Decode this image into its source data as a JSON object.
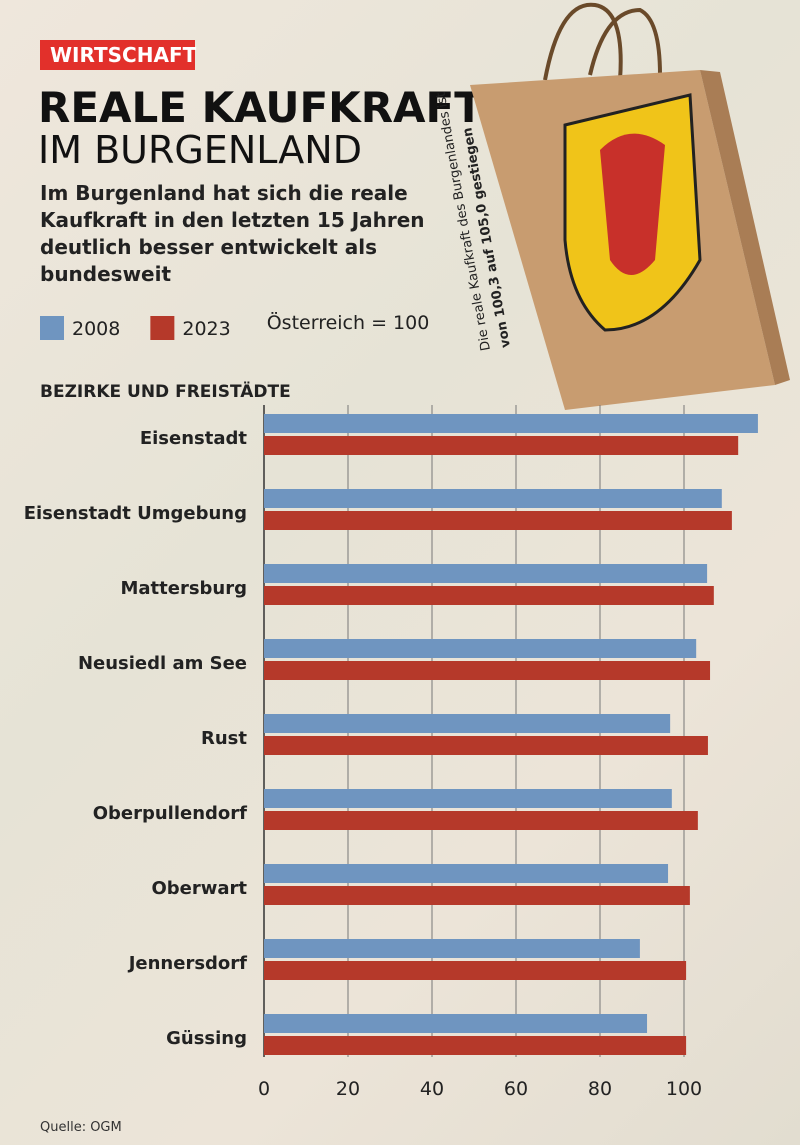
{
  "header": {
    "tag": "WIRTSCHAFT",
    "title": "REALE KAUFKRAFT",
    "title2": "IM BURGENLAND",
    "subtitle": "Im Burgenland hat sich die reale Kaufkraft in den letzten 15 Jahren deutlich besser entwickelt als bundesweit",
    "note": "Österreich = 100",
    "bag_text_1": "Die reale Kaufkraft des Burgenlandes ist",
    "bag_text_2": "von 100,3 auf 105,0 gestiegen"
  },
  "chart_data": {
    "type": "hbar",
    "subtitle": "BEZIRKE UND FREISTÄDTE",
    "categories": [
      "Eisenstadt",
      "Eisenstadt Umgebung",
      "Mattersburg",
      "Neusiedl am See",
      "Rust",
      "Oberpullendorf",
      "Oberwart",
      "Jennersdorf",
      "Güssing"
    ],
    "series": [
      {
        "name": "2008",
        "color": "#6f95c0",
        "values": [
          117.6,
          109,
          105.5,
          102.9,
          96.7,
          97.1,
          96.2,
          89.5,
          91.2
        ]
      },
      {
        "name": "2023",
        "color": "#b5392a",
        "values": [
          112.9,
          111.4,
          107.1,
          106.2,
          105.7,
          103.3,
          101.4,
          100.5,
          100.5
        ]
      }
    ],
    "xlim": [
      0,
      120
    ],
    "xticks": [
      0,
      20,
      40,
      60,
      80,
      100
    ],
    "grid": true,
    "source": "Quelle: OGM"
  }
}
